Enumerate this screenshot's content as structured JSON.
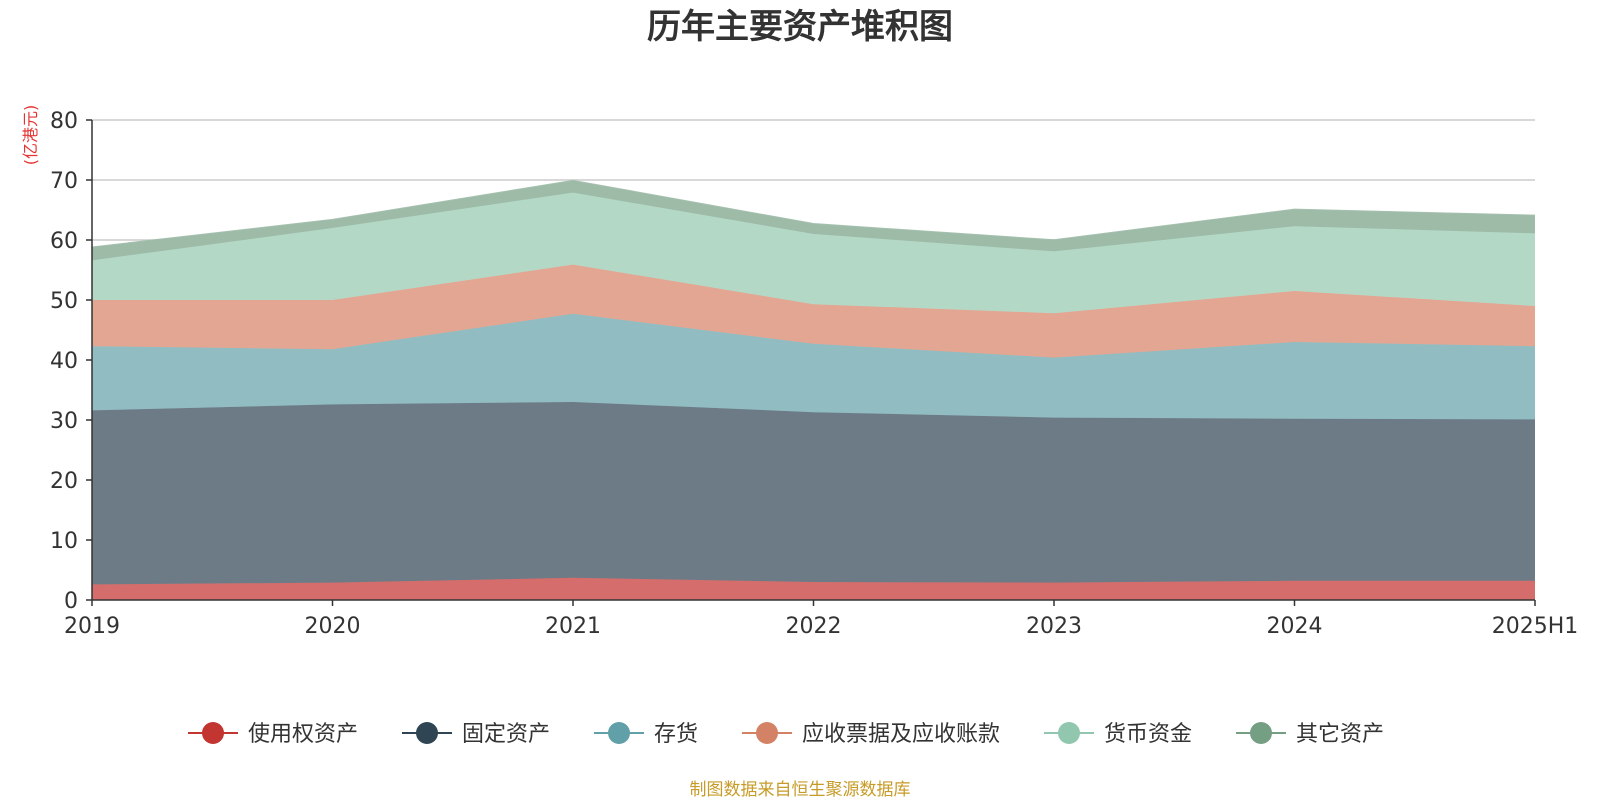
{
  "chart_data": {
    "type": "area",
    "stacked": true,
    "title": "历年主要资产堆积图",
    "unit_label": "(亿港元)",
    "ylim": [
      0,
      80
    ],
    "y_ticks": [
      0,
      10,
      20,
      30,
      40,
      50,
      60,
      70,
      80
    ],
    "categories": [
      "2019",
      "2020",
      "2021",
      "2022",
      "2023",
      "2024",
      "2025H1"
    ],
    "grid": true,
    "legend_position": "bottom",
    "series": [
      {
        "name": "使用权资产",
        "color": "#c23531",
        "fill": "#d46d6b",
        "values": [
          2.6,
          2.9,
          3.7,
          3.0,
          2.9,
          3.2,
          3.2
        ]
      },
      {
        "name": "固定资产",
        "color": "#2f4554",
        "fill": "#6d7b86",
        "values": [
          29.0,
          29.7,
          29.3,
          28.3,
          27.5,
          27.0,
          26.9
        ]
      },
      {
        "name": "存货",
        "color": "#61a0a8",
        "fill": "#90bcc2",
        "values": [
          10.7,
          9.2,
          14.7,
          11.4,
          10.0,
          12.8,
          12.2
        ]
      },
      {
        "name": "应收票据及应收账款",
        "color": "#d48265",
        "fill": "#e2a692",
        "values": [
          7.7,
          8.2,
          8.2,
          6.6,
          7.4,
          8.5,
          6.7
        ]
      },
      {
        "name": "货币资金",
        "color": "#91c7ae",
        "fill": "#b3d9c6",
        "values": [
          6.6,
          12.0,
          12.0,
          11.7,
          10.3,
          10.8,
          12.1
        ]
      },
      {
        "name": "其它资产",
        "color": "#749f83",
        "fill": "#9ebba8",
        "values": [
          2.2,
          1.4,
          2.0,
          1.7,
          1.9,
          2.8,
          3.0
        ]
      }
    ]
  },
  "footer": {
    "source": "制图数据来自恒生聚源数据库",
    "source_color": "#c79b27",
    "unit_color": "#e63232"
  }
}
